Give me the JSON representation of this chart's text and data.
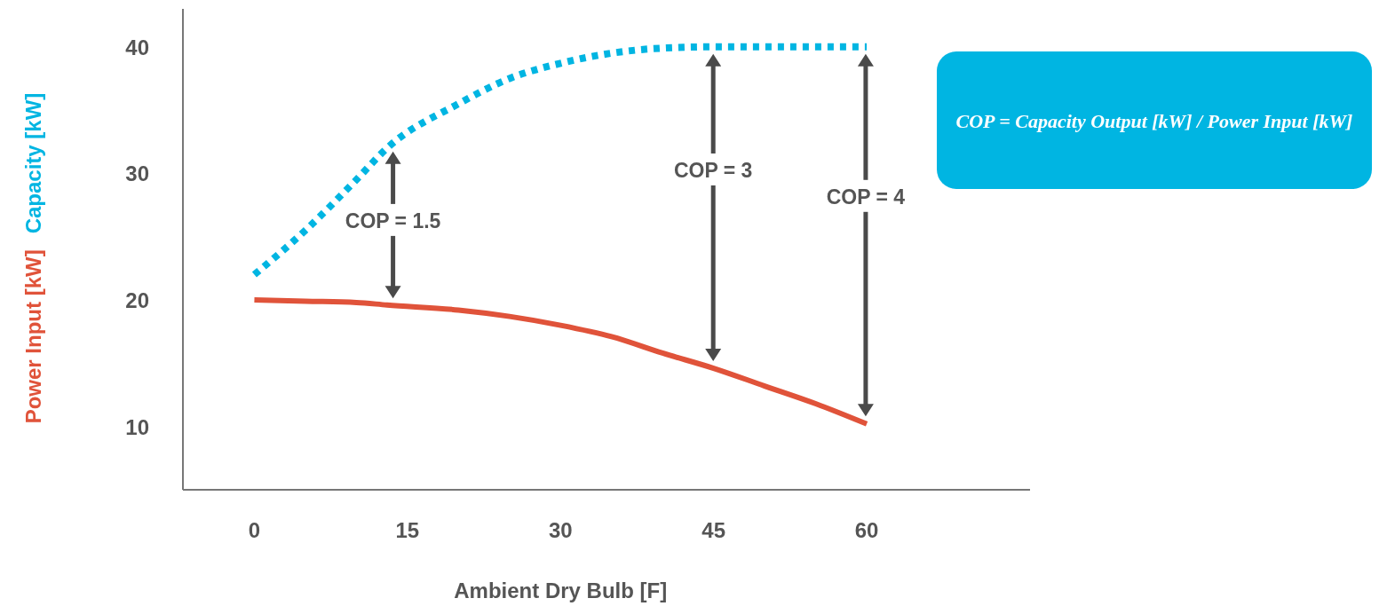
{
  "chart_data": {
    "type": "line",
    "xlabel": "Ambient Dry Bulb [F]",
    "x": [
      0,
      5,
      10,
      13,
      20,
      25,
      30,
      35,
      40,
      45,
      50,
      55,
      60
    ],
    "series": [
      {
        "name": "Power Input [kW]",
        "color": "#e0533a",
        "line_style": "solid",
        "values": [
          20,
          19.9,
          19.8,
          19.6,
          19.2,
          18.7,
          18,
          17.1,
          15.8,
          14.6,
          13.2,
          11.8,
          10.2
        ]
      },
      {
        "name": "Capacity [kW]",
        "color": "#00b5e2",
        "line_style": "dotted",
        "values": [
          22,
          25.5,
          29.5,
          32,
          35.5,
          37.5,
          38.7,
          39.5,
          39.9,
          40,
          40,
          40,
          40
        ]
      }
    ],
    "xlim": [
      -7,
      76
    ],
    "ylim": [
      5,
      43
    ],
    "xticks": [
      0,
      15,
      30,
      45,
      60
    ],
    "yticks": [
      10,
      20,
      30,
      40
    ],
    "annotations": [
      "COP = 1.5",
      "COP = 3",
      "COP = 4",
      "COP = Capacity Output [kW] / Power Input [kW]"
    ]
  }
}
